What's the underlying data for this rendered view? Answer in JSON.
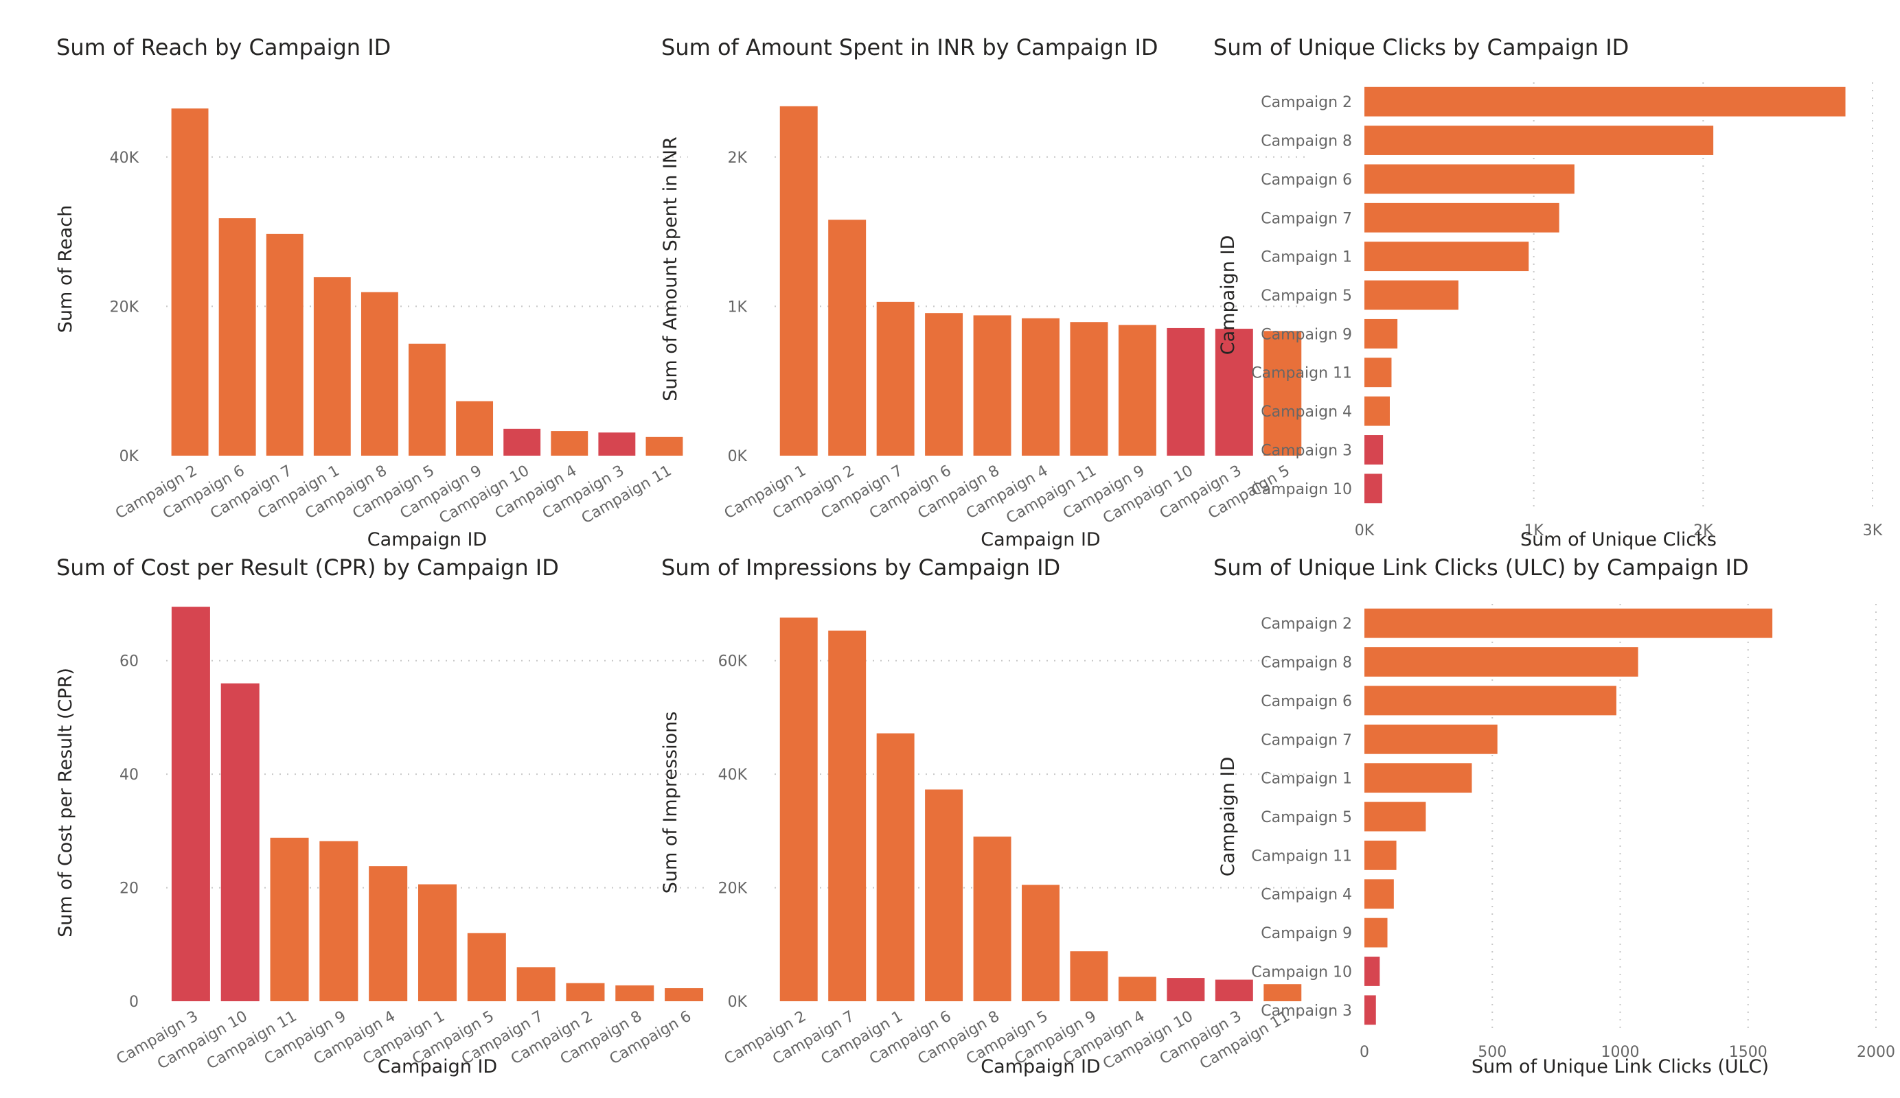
{
  "colors": {
    "bar": "#E8703A",
    "highlight": "#D64550"
  },
  "chart_data": [
    {
      "id": "reach",
      "type": "bar",
      "orientation": "vertical",
      "title": "Sum of Reach by Campaign ID",
      "xlabel": "Campaign ID",
      "ylabel": "Sum of Reach",
      "categories": [
        "Campaign 2",
        "Campaign 6",
        "Campaign 7",
        "Campaign 1",
        "Campaign 8",
        "Campaign 5",
        "Campaign 9",
        "Campaign 10",
        "Campaign 4",
        "Campaign 3",
        "Campaign 11"
      ],
      "values": [
        46500,
        31800,
        29700,
        23900,
        21900,
        15000,
        7300,
        3600,
        3300,
        3100,
        2500
      ],
      "highlighted": [
        "Campaign 10",
        "Campaign 3"
      ],
      "ylim": [
        0,
        50000
      ],
      "ticks": [
        0,
        20000,
        40000
      ],
      "tick_labels": [
        "0K",
        "20K",
        "40K"
      ],
      "grid": true
    },
    {
      "id": "spent",
      "type": "bar",
      "orientation": "vertical",
      "title": "Sum of Amount Spent in INR by Campaign ID",
      "xlabel": "Campaign ID",
      "ylabel": "Sum of Amount Spent in INR",
      "categories": [
        "Campaign 1",
        "Campaign 2",
        "Campaign 7",
        "Campaign 6",
        "Campaign 8",
        "Campaign 4",
        "Campaign 11",
        "Campaign 9",
        "Campaign 10",
        "Campaign 3",
        "Campaign 5"
      ],
      "values": [
        2340,
        1580,
        1030,
        955,
        940,
        920,
        895,
        875,
        855,
        850,
        835
      ],
      "highlighted": [
        "Campaign 10",
        "Campaign 3"
      ],
      "ylim": [
        0,
        2500
      ],
      "ticks": [
        0,
        1000,
        2000
      ],
      "tick_labels": [
        "0K",
        "1K",
        "2K"
      ],
      "grid": true
    },
    {
      "id": "unique-clicks",
      "type": "bar",
      "orientation": "horizontal",
      "title": "Sum of Unique Clicks by Campaign ID",
      "xlabel": "Sum of Unique Clicks",
      "ylabel": "Campaign ID",
      "categories": [
        "Campaign 2",
        "Campaign 8",
        "Campaign 6",
        "Campaign 7",
        "Campaign 1",
        "Campaign 5",
        "Campaign 9",
        "Campaign 11",
        "Campaign 4",
        "Campaign 3",
        "Campaign 10"
      ],
      "values": [
        2840,
        2060,
        1240,
        1150,
        970,
        555,
        195,
        160,
        150,
        110,
        105
      ],
      "highlighted": [
        "Campaign 3",
        "Campaign 10"
      ],
      "xlim": [
        0,
        3000
      ],
      "ticks": [
        0,
        1000,
        2000,
        3000
      ],
      "tick_labels": [
        "0K",
        "1K",
        "2K",
        "3K"
      ],
      "grid": true
    },
    {
      "id": "cpr",
      "type": "bar",
      "orientation": "vertical",
      "title": "Sum of Cost per Result (CPR) by Campaign ID",
      "xlabel": "Campaign ID",
      "ylabel": "Sum of Cost per Result (CPR)",
      "categories": [
        "Campaign 3",
        "Campaign 10",
        "Campaign 11",
        "Campaign 9",
        "Campaign 4",
        "Campaign 1",
        "Campaign 5",
        "Campaign 7",
        "Campaign 2",
        "Campaign 8",
        "Campaign 6"
      ],
      "values": [
        69.5,
        56,
        28.8,
        28.2,
        23.8,
        20.6,
        12,
        6,
        3.2,
        2.8,
        2.3
      ],
      "highlighted": [
        "Campaign 3",
        "Campaign 10"
      ],
      "ylim": [
        0,
        70
      ],
      "ticks": [
        0,
        20,
        40,
        60
      ],
      "tick_labels": [
        "0",
        "20",
        "40",
        "60"
      ],
      "grid": true
    },
    {
      "id": "impressions",
      "type": "bar",
      "orientation": "vertical",
      "title": "Sum of Impressions by Campaign ID",
      "xlabel": "Campaign ID",
      "ylabel": "Sum of Impressions",
      "categories": [
        "Campaign 2",
        "Campaign 7",
        "Campaign 1",
        "Campaign 6",
        "Campaign 8",
        "Campaign 5",
        "Campaign 9",
        "Campaign 4",
        "Campaign 10",
        "Campaign 3",
        "Campaign 11"
      ],
      "values": [
        67600,
        65300,
        47200,
        37300,
        29000,
        20500,
        8800,
        4300,
        4100,
        3800,
        3000
      ],
      "highlighted": [
        "Campaign 10",
        "Campaign 3"
      ],
      "ylim": [
        0,
        70000
      ],
      "ticks": [
        0,
        20000,
        40000,
        60000
      ],
      "tick_labels": [
        "0K",
        "20K",
        "40K",
        "60K"
      ],
      "grid": true
    },
    {
      "id": "ulc",
      "type": "bar",
      "orientation": "horizontal",
      "title": "Sum of Unique Link Clicks (ULC) by Campaign ID",
      "xlabel": "Sum of Unique Link Clicks (ULC)",
      "ylabel": "Campaign ID",
      "categories": [
        "Campaign 2",
        "Campaign 8",
        "Campaign 6",
        "Campaign 7",
        "Campaign 1",
        "Campaign 5",
        "Campaign 11",
        "Campaign 4",
        "Campaign 9",
        "Campaign 10",
        "Campaign 3"
      ],
      "values": [
        1595,
        1070,
        985,
        520,
        420,
        240,
        125,
        115,
        90,
        60,
        45
      ],
      "highlighted": [
        "Campaign 10",
        "Campaign 3"
      ],
      "xlim": [
        0,
        2000
      ],
      "ticks": [
        0,
        500,
        1000,
        1500,
        2000
      ],
      "tick_labels": [
        "0",
        "500",
        "1000",
        "1500",
        "2000"
      ],
      "grid": true
    }
  ]
}
